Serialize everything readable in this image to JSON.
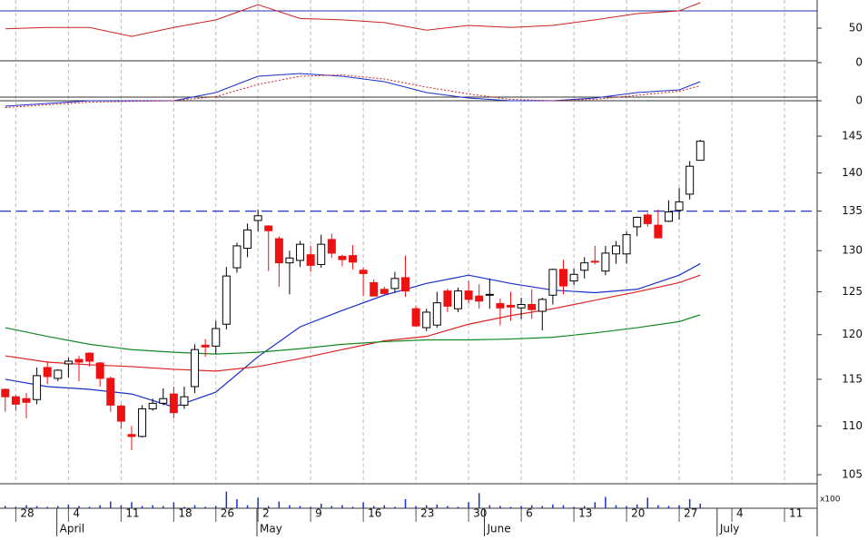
{
  "chart_data": {
    "type": "candlestick",
    "xlim": [
      -0.5,
      77.1
    ],
    "xticks": [
      {
        "value": 1,
        "label": "28"
      },
      {
        "value": 6,
        "label": "4"
      },
      {
        "value": 11,
        "label": "11"
      },
      {
        "value": 16,
        "label": "18"
      },
      {
        "value": 20,
        "label": "26"
      },
      {
        "value": 24,
        "label": "2"
      },
      {
        "value": 29,
        "label": "9"
      },
      {
        "value": 34,
        "label": "16"
      },
      {
        "value": 39,
        "label": "23"
      },
      {
        "value": 44,
        "label": "30"
      },
      {
        "value": 49,
        "label": "6"
      },
      {
        "value": 54,
        "label": "13"
      },
      {
        "value": 59,
        "label": "20"
      },
      {
        "value": 64,
        "label": "27"
      },
      {
        "value": 69,
        "label": "4"
      },
      {
        "value": 74,
        "label": "11"
      }
    ],
    "months": [
      {
        "value": 4.9,
        "label": "April"
      },
      {
        "value": 23.9,
        "label": "May"
      },
      {
        "value": 45.5,
        "label": "June"
      },
      {
        "value": 67.6,
        "label": "July"
      }
    ],
    "price": {
      "log_scale": true,
      "ylim": [
        104.1,
        150.5
      ],
      "yticks": [
        105,
        110,
        115,
        120,
        125,
        130,
        135,
        140,
        145
      ],
      "grid": true,
      "up_color": "#ffffff",
      "down_color": "#ee1111",
      "reference_line": 135,
      "reference_color": "#2233cc",
      "open": [
        113.9,
        113.1,
        112.9,
        112.8,
        116.3,
        115.1,
        116.7,
        117.2,
        117.9,
        116.8,
        115.1,
        112.1,
        109.1,
        108.9,
        111.8,
        112.4,
        113.4,
        112.2,
        114.2,
        118.8,
        118.7,
        121.2,
        127.9,
        130.3,
        133.8,
        133.1,
        131.5,
        128.5,
        128.8,
        129.5,
        128.3,
        131.4,
        129.3,
        129.4,
        127.6,
        126.1,
        125.3,
        125.4,
        126.7,
        123.0,
        120.8,
        121.1,
        125.1,
        123.0,
        125.1,
        124.5,
        124.6,
        123.6,
        123.4,
        123.1,
        123.5,
        122.7,
        124.6,
        127.7,
        126.3,
        127.6,
        128.7,
        127.5,
        129.6,
        129.6,
        133.0,
        134.5,
        133.2,
        133.7,
        135.1,
        137.2,
        141.7
      ],
      "high": [
        114.0,
        113.3,
        113.5,
        116.3,
        117.0,
        116.1,
        117.4,
        117.6,
        118.0,
        116.9,
        115.3,
        112.3,
        110.0,
        112.2,
        112.9,
        114.0,
        114.2,
        114.2,
        118.9,
        119.5,
        121.6,
        128.0,
        131.0,
        133.4,
        135.2,
        133.2,
        131.8,
        130.0,
        131.2,
        130.6,
        132.0,
        132.1,
        129.5,
        130.7,
        127.9,
        126.5,
        125.6,
        127.4,
        129.4,
        123.3,
        123.0,
        125.0,
        125.4,
        125.5,
        126.3,
        125.9,
        126.6,
        124.2,
        125.0,
        124.3,
        125.3,
        124.3,
        127.8,
        128.9,
        127.8,
        129.2,
        130.6,
        130.6,
        131.2,
        132.4,
        134.3,
        134.8,
        135.2,
        136.4,
        138.0,
        141.6,
        144.5
      ],
      "low": [
        111.5,
        111.6,
        110.8,
        112.3,
        114.5,
        114.8,
        115.2,
        114.8,
        116.4,
        114.2,
        111.5,
        109.7,
        107.5,
        108.8,
        111.6,
        112.2,
        110.8,
        111.8,
        113.5,
        117.5,
        117.8,
        120.6,
        127.3,
        129.2,
        132.4,
        127.5,
        125.6,
        124.7,
        128.0,
        127.4,
        127.9,
        129.1,
        128.1,
        127.7,
        124.5,
        124.5,
        124.6,
        124.9,
        124.4,
        120.9,
        120.4,
        120.8,
        122.6,
        122.6,
        123.6,
        123.0,
        123.0,
        121.1,
        121.6,
        121.8,
        121.8,
        120.5,
        123.5,
        124.7,
        125.8,
        126.6,
        128.3,
        127.0,
        128.4,
        128.4,
        131.8,
        133.0,
        131.9,
        133.6,
        133.9,
        136.5,
        141.7
      ],
      "close": [
        113.1,
        112.3,
        112.5,
        115.4,
        115.3,
        116.0,
        117.0,
        116.9,
        117.0,
        115.1,
        112.2,
        110.5,
        108.9,
        111.8,
        112.4,
        112.9,
        111.4,
        113.1,
        118.3,
        118.6,
        120.7,
        126.9,
        130.6,
        132.6,
        134.4,
        132.5,
        128.5,
        129.1,
        130.8,
        128.2,
        130.8,
        129.7,
        128.9,
        128.6,
        127.2,
        124.5,
        124.8,
        126.6,
        125.1,
        121.0,
        122.6,
        123.7,
        123.3,
        125.1,
        124.1,
        123.9,
        124.7,
        123.1,
        123.2,
        123.5,
        122.9,
        124.1,
        127.7,
        125.7,
        127.1,
        128.5,
        128.6,
        129.7,
        130.6,
        132.0,
        134.2,
        133.4,
        131.6,
        134.9,
        136.2,
        140.9,
        144.3
      ],
      "ma_x": [
        0,
        4,
        8,
        12,
        16,
        20,
        24,
        28,
        32,
        36,
        40,
        44,
        48,
        52,
        56,
        60,
        64,
        66
      ],
      "moving_averages": [
        {
          "color": "#1a2ecc",
          "values": [
            115.0,
            114.2,
            113.9,
            113.4,
            112.0,
            113.6,
            117.5,
            120.9,
            122.8,
            124.6,
            126.0,
            127.0,
            126.0,
            125.2,
            124.9,
            125.3,
            127.0,
            128.4
          ]
        },
        {
          "color": "#dd2222",
          "values": [
            117.6,
            116.9,
            116.6,
            116.4,
            116.1,
            115.9,
            116.4,
            117.3,
            118.3,
            119.3,
            119.8,
            121.2,
            122.2,
            123.0,
            124.0,
            125.0,
            126.1,
            127.0
          ]
        },
        {
          "color": "#118822",
          "values": [
            120.8,
            119.8,
            118.9,
            118.3,
            118.0,
            117.8,
            118.0,
            118.4,
            118.9,
            119.2,
            119.4,
            119.4,
            119.5,
            119.7,
            120.2,
            120.8,
            121.5,
            122.3
          ]
        }
      ]
    },
    "rsi": {
      "ylim": [
        0,
        90.8
      ],
      "yticks": [
        50,
        0
      ],
      "reference_line": 75,
      "color": "#cc2222",
      "x": [
        0,
        4,
        8,
        12,
        16,
        20,
        24,
        28,
        32,
        36,
        40,
        44,
        48,
        52,
        56,
        60,
        64,
        66
      ],
      "values": [
        49,
        51,
        51,
        38,
        51,
        62,
        84,
        64,
        62,
        58,
        47,
        54,
        51,
        54,
        62,
        71,
        75,
        87
      ]
    },
    "macd": {
      "ylim": [
        -0.3,
        1.4
      ],
      "yticks": [
        0
      ],
      "x": [
        0,
        8,
        16,
        20,
        24,
        28,
        32,
        36,
        40,
        44,
        48,
        52,
        56,
        60,
        64,
        66
      ],
      "line": {
        "color": "#1a2ecc",
        "values": [
          -0.2,
          0.0,
          0.0,
          0.3,
          0.9,
          1.0,
          0.9,
          0.7,
          0.3,
          0.1,
          0.0,
          0.0,
          0.1,
          0.3,
          0.4,
          0.7
        ]
      },
      "signal": {
        "color": "#cc2222",
        "values": [
          -0.25,
          -0.05,
          0.0,
          0.15,
          0.6,
          0.9,
          0.95,
          0.8,
          0.5,
          0.25,
          0.05,
          0.0,
          0.05,
          0.2,
          0.35,
          0.55
        ]
      }
    },
    "volume": {
      "ylim": [
        0,
        30
      ],
      "label": "x100",
      "color": "#1a2ecc",
      "values": [
        3,
        2,
        4,
        3,
        2,
        3,
        5,
        3,
        2,
        4,
        9,
        4,
        8,
        3,
        4,
        3,
        8,
        2,
        4,
        2,
        3,
        22,
        12,
        4,
        14,
        3,
        9,
        4,
        3,
        2,
        6,
        3,
        4,
        2,
        8,
        3,
        4,
        2,
        12,
        3,
        4,
        5,
        3,
        2,
        8,
        20,
        4,
        3,
        2,
        3,
        4,
        3,
        5,
        4,
        2,
        3,
        8,
        15,
        4,
        3,
        5,
        14,
        4,
        3,
        4,
        12,
        6
      ]
    }
  }
}
